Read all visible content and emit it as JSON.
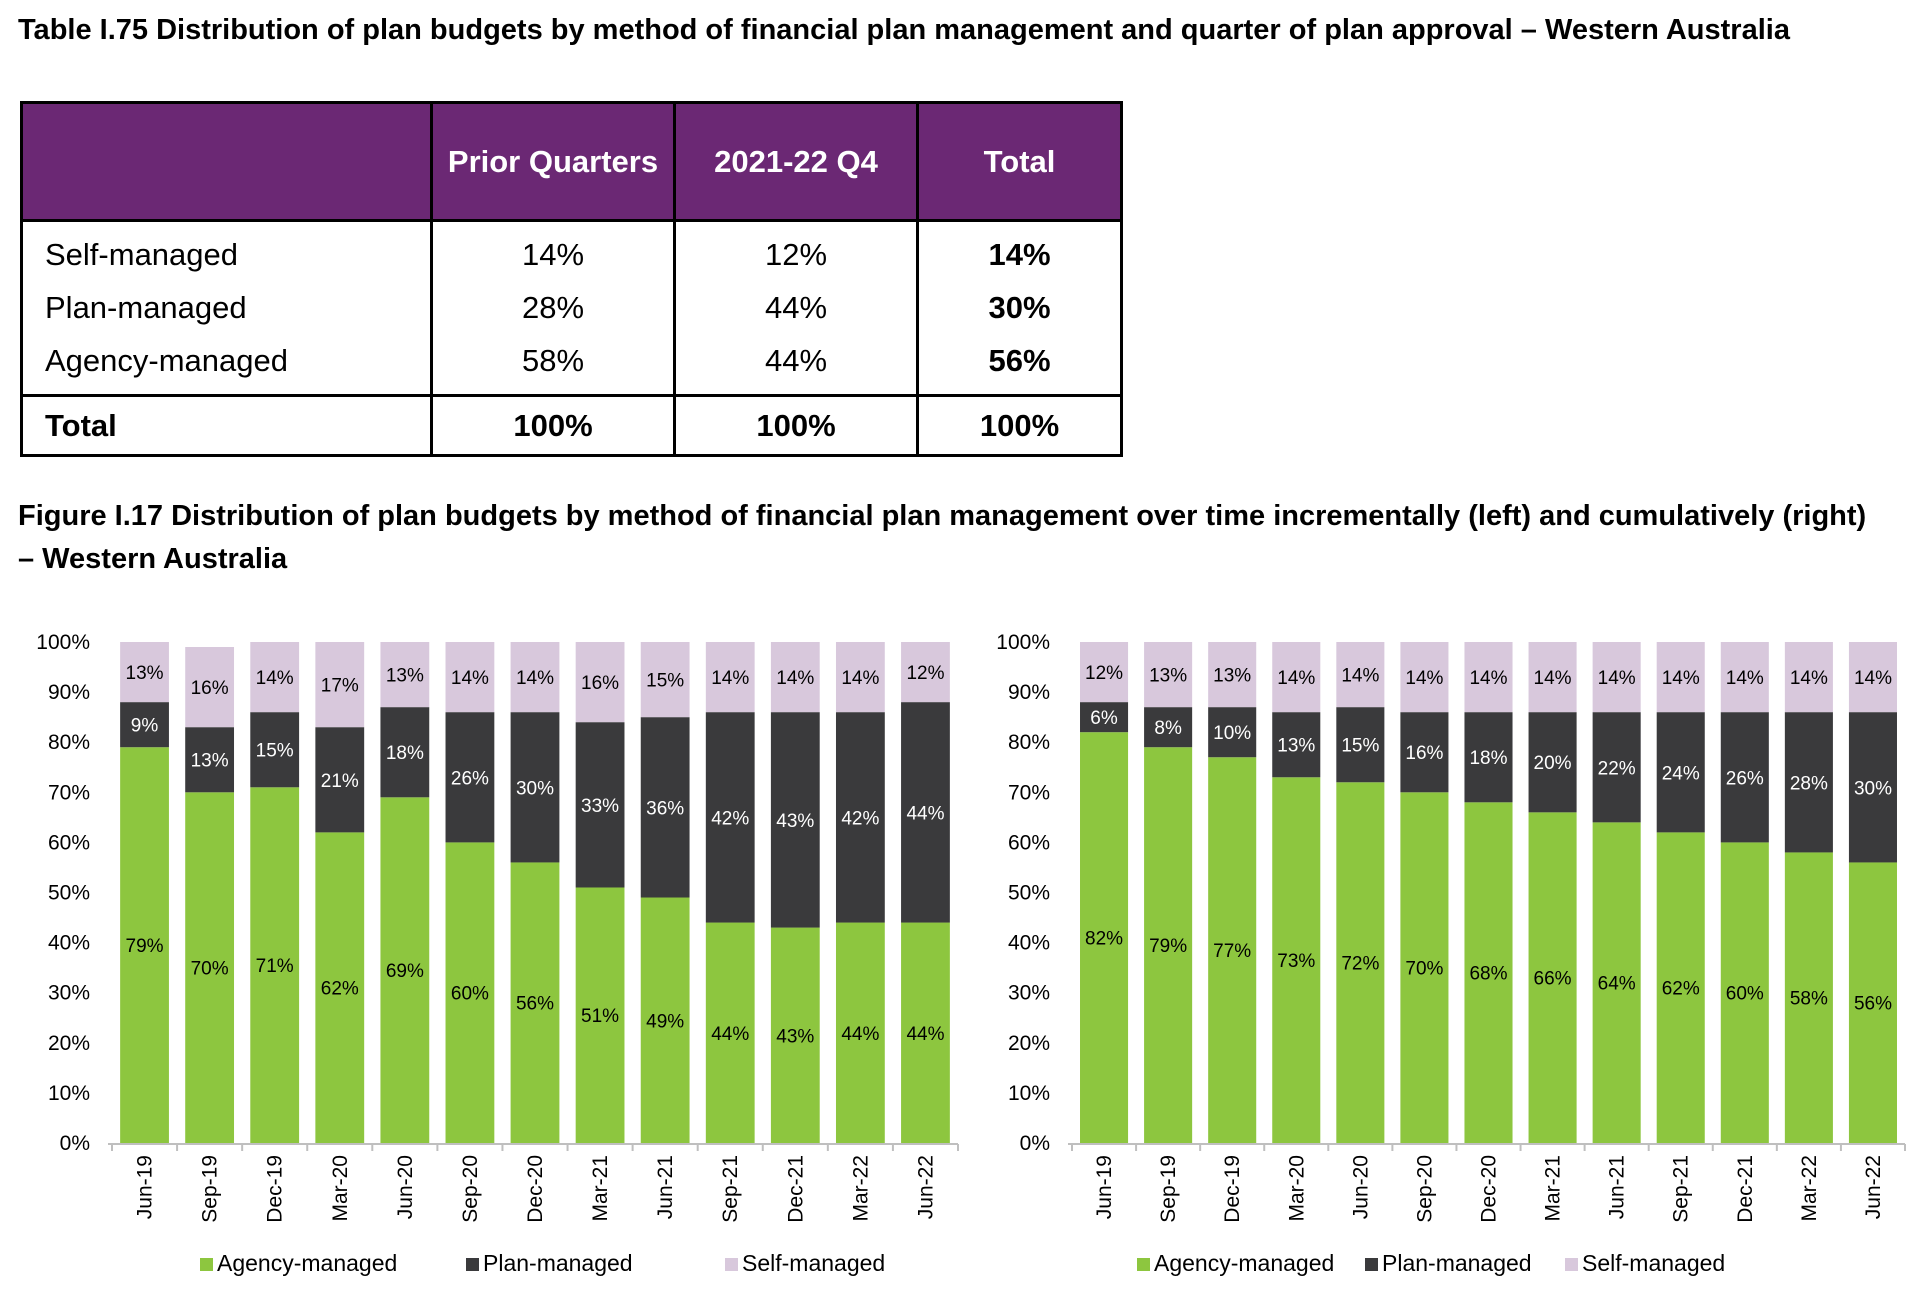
{
  "table": {
    "title": "Table I.75 Distribution of plan budgets by method of financial plan management and quarter of plan approval – Western Australia",
    "headers": [
      "",
      "Prior Quarters",
      "2021-22 Q4",
      "Total"
    ],
    "rows": [
      {
        "label": "Self-managed",
        "prior": "14%",
        "q4": "12%",
        "total": "14%"
      },
      {
        "label": "Plan-managed",
        "prior": "28%",
        "q4": "44%",
        "total": "30%"
      },
      {
        "label": "Agency-managed",
        "prior": "58%",
        "q4": "44%",
        "total": "56%"
      }
    ],
    "total_row": {
      "label": "Total",
      "prior": "100%",
      "q4": "100%",
      "total": "100%"
    }
  },
  "figure": {
    "title": "Figure I.17 Distribution of plan budgets by method of financial plan management over time incrementally (left) and cumulatively (right) – Western Australia"
  },
  "colors": {
    "agency": "#8dc63f",
    "plan": "#3a3a3c",
    "self": "#d8c8dc",
    "header": "#6b2874"
  },
  "chart_data": [
    {
      "type": "bar",
      "stacked": true,
      "categories": [
        "Jun-19",
        "Sep-19",
        "Dec-19",
        "Mar-20",
        "Jun-20",
        "Sep-20",
        "Dec-20",
        "Mar-21",
        "Jun-21",
        "Sep-21",
        "Dec-21",
        "Mar-22",
        "Jun-22"
      ],
      "series": [
        {
          "name": "Agency-managed",
          "values": [
            79,
            70,
            71,
            62,
            69,
            60,
            56,
            51,
            49,
            44,
            43,
            44,
            44
          ]
        },
        {
          "name": "Plan-managed",
          "values": [
            9,
            13,
            15,
            21,
            18,
            26,
            30,
            33,
            36,
            42,
            43,
            42,
            44
          ]
        },
        {
          "name": "Self-managed",
          "values": [
            13,
            16,
            14,
            17,
            13,
            14,
            14,
            16,
            15,
            14,
            14,
            14,
            12
          ]
        }
      ],
      "ylim": [
        0,
        100
      ],
      "yticks": [
        "0%",
        "10%",
        "20%",
        "30%",
        "40%",
        "50%",
        "60%",
        "70%",
        "80%",
        "90%",
        "100%"
      ],
      "legend": "bottom"
    },
    {
      "type": "bar",
      "stacked": true,
      "categories": [
        "Jun-19",
        "Sep-19",
        "Dec-19",
        "Mar-20",
        "Jun-20",
        "Sep-20",
        "Dec-20",
        "Mar-21",
        "Jun-21",
        "Sep-21",
        "Dec-21",
        "Mar-22",
        "Jun-22"
      ],
      "series": [
        {
          "name": "Agency-managed",
          "values": [
            82,
            79,
            77,
            73,
            72,
            70,
            68,
            66,
            64,
            62,
            60,
            58,
            56
          ]
        },
        {
          "name": "Plan-managed",
          "values": [
            6,
            8,
            10,
            13,
            15,
            16,
            18,
            20,
            22,
            24,
            26,
            28,
            30
          ]
        },
        {
          "name": "Self-managed",
          "values": [
            12,
            13,
            13,
            14,
            14,
            14,
            14,
            14,
            14,
            14,
            14,
            14,
            14
          ]
        }
      ],
      "ylim": [
        0,
        100
      ],
      "yticks": [
        "0%",
        "10%",
        "20%",
        "30%",
        "40%",
        "50%",
        "60%",
        "70%",
        "80%",
        "90%",
        "100%"
      ],
      "legend": "bottom"
    }
  ]
}
